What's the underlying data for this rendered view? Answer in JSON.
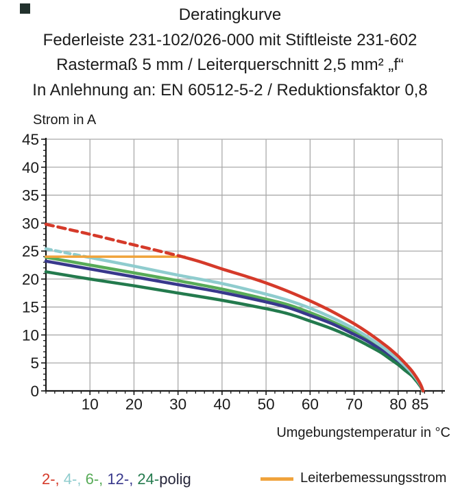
{
  "title": {
    "line1": "Deratingkurve",
    "line2": "Federleiste 231-102/026-000 mit Stiftleiste 231-602",
    "line3": "Rastermaß 5 mm / Leiterquerschnitt 2,5 mm² „f“",
    "line4": "In Anlehnung an: EN 60512-5-2 / Reduktionsfaktor 0,8"
  },
  "chart_data": {
    "type": "line",
    "ylabel": "Strom in A",
    "xlabel": "Umgebungstemperatur in °C",
    "xlim": [
      0,
      90
    ],
    "ylim": [
      0,
      45
    ],
    "x_major_ticks": [
      10,
      20,
      30,
      40,
      50,
      60,
      70,
      80,
      85
    ],
    "y_major_ticks": [
      0,
      5,
      10,
      15,
      20,
      25,
      30,
      35,
      40,
      45
    ],
    "x_gridlines": [
      10,
      20,
      30,
      40,
      50,
      60,
      70,
      80,
      90
    ],
    "y_gridlines": [
      5,
      10,
      15,
      20,
      25,
      30,
      35,
      40,
      45
    ],
    "x_minor_step": 2,
    "y_minor_step": 1,
    "grid": true,
    "grid_color": "#a9a9a9",
    "axis_color": "#1a1a1a",
    "series": [
      {
        "name": "6-polig",
        "color": "#58ab58",
        "width": 4.5,
        "segments": [
          {
            "dashed": false,
            "points": [
              [
                0,
                23.9
              ],
              [
                10,
                22.5
              ],
              [
                20,
                21.1
              ],
              [
                30,
                19.7
              ],
              [
                40,
                18.2
              ],
              [
                50,
                16.4
              ],
              [
                55,
                15.4
              ],
              [
                60,
                14.0
              ],
              [
                65,
                12.4
              ],
              [
                70,
                10.5
              ],
              [
                73,
                9.2
              ],
              [
                76,
                7.7
              ],
              [
                78,
                6.5
              ],
              [
                80,
                5.3
              ],
              [
                81.5,
                4.2
              ],
              [
                83,
                3.1
              ],
              [
                84,
                2.2
              ],
              [
                84.8,
                1.3
              ],
              [
                85.3,
                0.6
              ],
              [
                85.6,
                0
              ]
            ]
          }
        ]
      },
      {
        "name": "12-polig",
        "color": "#38388c",
        "width": 4.5,
        "segments": [
          {
            "dashed": false,
            "points": [
              [
                0,
                23.2
              ],
              [
                10,
                21.8
              ],
              [
                20,
                20.4
              ],
              [
                30,
                19.0
              ],
              [
                40,
                17.6
              ],
              [
                50,
                15.9
              ],
              [
                55,
                14.9
              ],
              [
                60,
                13.5
              ],
              [
                65,
                12.0
              ],
              [
                70,
                10.1
              ],
              [
                73,
                8.9
              ],
              [
                76,
                7.4
              ],
              [
                78,
                6.3
              ],
              [
                80,
                5.1
              ],
              [
                81.5,
                4.0
              ],
              [
                83,
                3.0
              ],
              [
                84,
                2.1
              ],
              [
                84.8,
                1.2
              ],
              [
                85.3,
                0.6
              ],
              [
                85.55,
                0
              ]
            ]
          }
        ]
      },
      {
        "name": "24-polig",
        "color": "#237a4d",
        "width": 4.5,
        "segments": [
          {
            "dashed": false,
            "points": [
              [
                0,
                21.3
              ],
              [
                10,
                20.0
              ],
              [
                20,
                18.8
              ],
              [
                30,
                17.5
              ],
              [
                40,
                16.2
              ],
              [
                50,
                14.7
              ],
              [
                55,
                13.8
              ],
              [
                60,
                12.5
              ],
              [
                65,
                11.1
              ],
              [
                70,
                9.4
              ],
              [
                73,
                8.2
              ],
              [
                76,
                6.9
              ],
              [
                78,
                5.8
              ],
              [
                80,
                4.7
              ],
              [
                81.5,
                3.7
              ],
              [
                83,
                2.8
              ],
              [
                84,
                1.9
              ],
              [
                84.8,
                1.1
              ],
              [
                85.3,
                0.5
              ],
              [
                85.5,
                0
              ]
            ]
          }
        ]
      },
      {
        "name": "4-polig",
        "color": "#8fccce",
        "width": 4.5,
        "dash": "8,6",
        "segments": [
          {
            "dashed": true,
            "points": [
              [
                0,
                25.4
              ],
              [
                4.5,
                24.7
              ],
              [
                9,
                24.0
              ]
            ]
          },
          {
            "dashed": false,
            "points": [
              [
                9,
                24.0
              ],
              [
                20,
                22.3
              ],
              [
                30,
                20.7
              ],
              [
                40,
                19.2
              ],
              [
                50,
                17.3
              ],
              [
                55,
                16.2
              ],
              [
                60,
                14.8
              ],
              [
                65,
                13.1
              ],
              [
                70,
                11.1
              ],
              [
                73,
                9.7
              ],
              [
                76,
                8.1
              ],
              [
                78,
                6.9
              ],
              [
                80,
                5.6
              ],
              [
                81.5,
                4.5
              ],
              [
                83,
                3.3
              ],
              [
                84,
                2.3
              ],
              [
                84.8,
                1.4
              ],
              [
                85.3,
                0.7
              ],
              [
                85.6,
                0
              ]
            ]
          }
        ]
      },
      {
        "name": "Leiterbemessungsstrom",
        "color": "#f0a33c",
        "width": 3.5,
        "segments": [
          {
            "dashed": false,
            "points": [
              [
                0,
                24
              ],
              [
                31.5,
                24
              ]
            ]
          }
        ]
      },
      {
        "name": "2-polig",
        "color": "#d53a2a",
        "width": 4.5,
        "dash": "11,7",
        "segments": [
          {
            "dashed": true,
            "points": [
              [
                0,
                29.8
              ],
              [
                10,
                28.0
              ],
              [
                20,
                26.1
              ],
              [
                30.5,
                24.1
              ]
            ]
          },
          {
            "dashed": false,
            "points": [
              [
                30.5,
                24.1
              ],
              [
                35,
                23.1
              ],
              [
                40,
                21.8
              ],
              [
                45,
                20.6
              ],
              [
                50,
                19.3
              ],
              [
                55,
                17.8
              ],
              [
                60,
                16.1
              ],
              [
                65,
                14.2
              ],
              [
                70,
                12.0
              ],
              [
                73,
                10.5
              ],
              [
                76,
                8.8
              ],
              [
                78,
                7.6
              ],
              [
                80,
                6.2
              ],
              [
                81.5,
                5.0
              ],
              [
                83,
                3.7
              ],
              [
                84,
                2.6
              ],
              [
                84.8,
                1.6
              ],
              [
                85.3,
                0.8
              ],
              [
                85.65,
                0
              ]
            ]
          }
        ]
      }
    ]
  },
  "legend": {
    "poles_tokens": [
      {
        "text": "2-,",
        "color": "#d53a2a"
      },
      {
        "text": " 4-,",
        "color": "#8fccce"
      },
      {
        "text": " 6-,",
        "color": "#58ab58"
      },
      {
        "text": " 12-,",
        "color": "#38388c"
      },
      {
        "text": " 24-",
        "color": "#237a4d"
      },
      {
        "text": "polig",
        "color": "#26263a"
      }
    ],
    "line_legend": {
      "label": "Leiterbemessungsstrom",
      "color": "#f0a33c"
    }
  }
}
